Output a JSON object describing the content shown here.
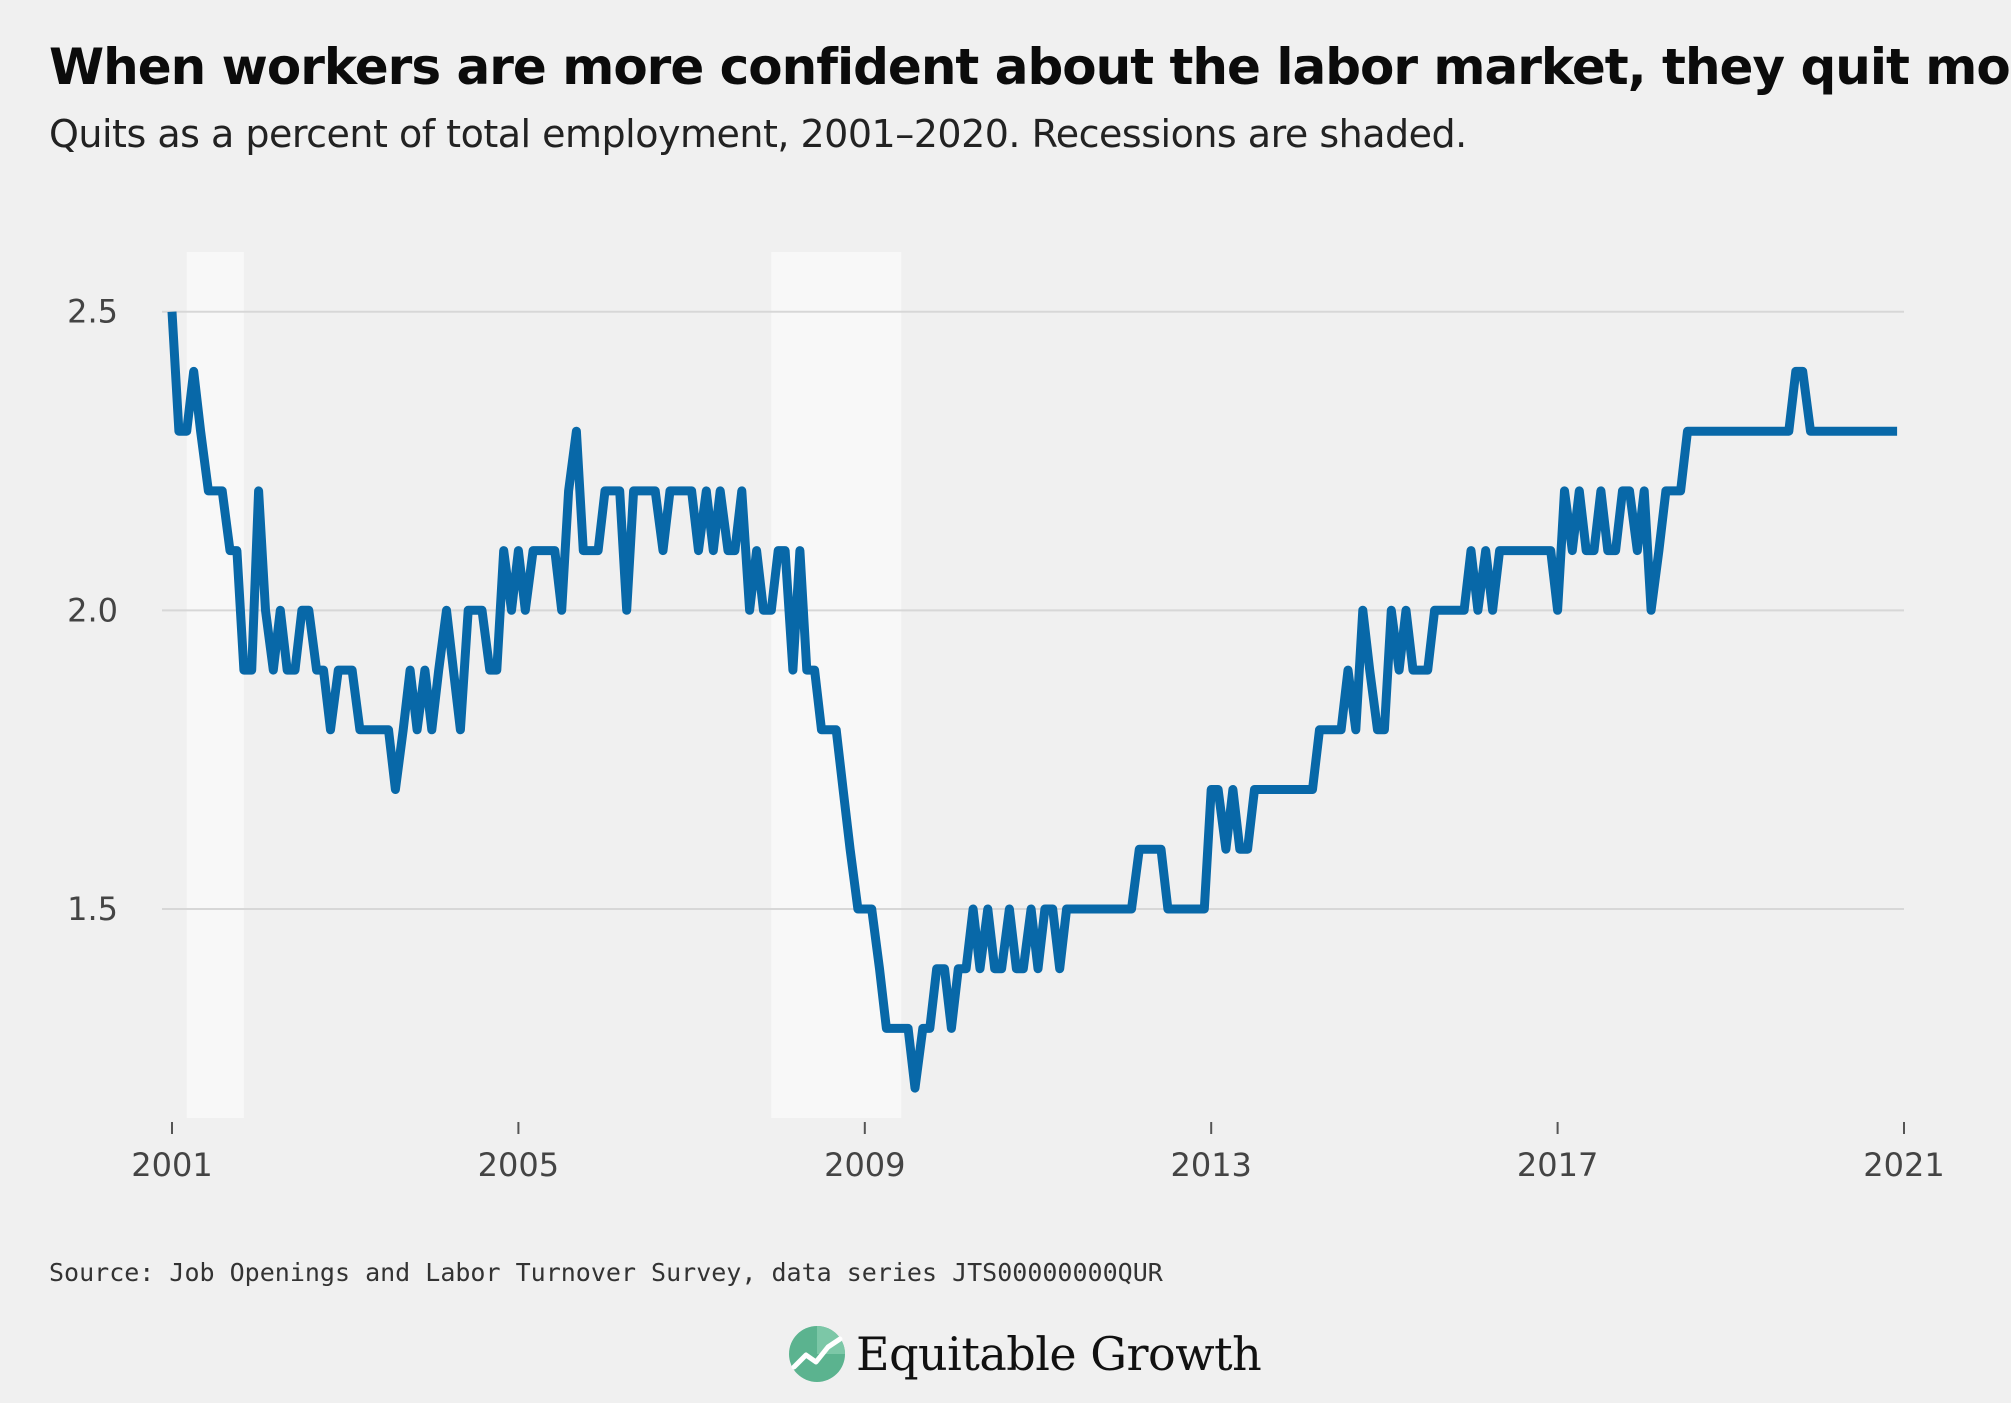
{
  "header": {
    "title": "When workers are more confident about the labor market, they quit more",
    "subtitle": "Quits as a percent of total employment, 2001–2020. Recessions are shaded."
  },
  "footer": {
    "source": "Source: Job Openings and Labor Turnover Survey, data series JTS00000000QUR",
    "logo_text": "Equitable Growth"
  },
  "colors": {
    "background": "#f0f0f0",
    "line": "#0868a8",
    "recession_band": "#f8f8f8",
    "gridline": "#d7d7d7",
    "logo_green": "#5bb38f"
  },
  "chart_data": {
    "type": "line",
    "xlim": [
      2001,
      2021
    ],
    "ylim": [
      1.15,
      2.6
    ],
    "x_ticks": [
      "2001",
      "2005",
      "2009",
      "2013",
      "2017",
      "2021"
    ],
    "y_ticks": [
      "1.5",
      "2.0",
      "2.5"
    ],
    "grid": true,
    "recessions": [
      [
        2001.17,
        2001.83
      ],
      [
        2007.92,
        2009.42
      ]
    ],
    "series": [
      {
        "x": [
          2001.0,
          2001.08,
          2001.17,
          2001.25,
          2001.33,
          2001.42,
          2001.5,
          2001.58,
          2001.67,
          2001.75,
          2001.83,
          2001.92,
          2002.0,
          2002.08,
          2002.17,
          2002.25,
          2002.33,
          2002.42,
          2002.5,
          2002.58,
          2002.67,
          2002.75,
          2002.83,
          2002.92,
          2003.0,
          2003.08,
          2003.17,
          2003.25,
          2003.33,
          2003.42,
          2003.5,
          2003.58,
          2003.67,
          2003.75,
          2003.83,
          2003.92,
          2004.0,
          2004.08,
          2004.17,
          2004.25,
          2004.33,
          2004.42,
          2004.5,
          2004.58,
          2004.67,
          2004.75,
          2004.83,
          2004.92,
          2005.0,
          2005.08,
          2005.17,
          2005.25,
          2005.33,
          2005.42,
          2005.5,
          2005.58,
          2005.67,
          2005.75,
          2005.83,
          2005.92,
          2006.0,
          2006.08,
          2006.17,
          2006.25,
          2006.33,
          2006.42,
          2006.5,
          2006.58,
          2006.67,
          2006.75,
          2006.83,
          2006.92,
          2007.0,
          2007.08,
          2007.17,
          2007.25,
          2007.33,
          2007.42,
          2007.5,
          2007.58,
          2007.67,
          2007.75,
          2007.83,
          2007.92,
          2008.0,
          2008.08,
          2008.17,
          2008.25,
          2008.33,
          2008.42,
          2008.5,
          2008.58,
          2008.67,
          2008.75,
          2008.83,
          2008.92,
          2009.0,
          2009.08,
          2009.17,
          2009.25,
          2009.33,
          2009.42,
          2009.5,
          2009.58,
          2009.67,
          2009.75,
          2009.83,
          2009.92,
          2010.0,
          2010.08,
          2010.17,
          2010.25,
          2010.33,
          2010.42,
          2010.5,
          2010.58,
          2010.67,
          2010.75,
          2010.83,
          2010.92,
          2011.0,
          2011.08,
          2011.17,
          2011.25,
          2011.33,
          2011.42,
          2011.5,
          2011.58,
          2011.67,
          2011.75,
          2011.83,
          2011.92,
          2012.0,
          2012.08,
          2012.17,
          2012.25,
          2012.33,
          2012.42,
          2012.5,
          2012.58,
          2012.67,
          2012.75,
          2012.83,
          2012.92,
          2013.0,
          2013.08,
          2013.17,
          2013.25,
          2013.33,
          2013.42,
          2013.5,
          2013.58,
          2013.67,
          2013.75,
          2013.83,
          2013.92,
          2014.0,
          2014.08,
          2014.17,
          2014.25,
          2014.33,
          2014.42,
          2014.5,
          2014.58,
          2014.67,
          2014.75,
          2014.83,
          2014.92,
          2015.0,
          2015.08,
          2015.17,
          2015.25,
          2015.33,
          2015.42,
          2015.5,
          2015.58,
          2015.67,
          2015.75,
          2015.83,
          2015.92,
          2016.0,
          2016.08,
          2016.17,
          2016.25,
          2016.33,
          2016.42,
          2016.5,
          2016.58,
          2016.67,
          2016.75,
          2016.83,
          2016.92,
          2017.0,
          2017.08,
          2017.17,
          2017.25,
          2017.33,
          2017.42,
          2017.5,
          2017.58,
          2017.67,
          2017.75,
          2017.83,
          2017.92,
          2018.0,
          2018.08,
          2018.17,
          2018.25,
          2018.33,
          2018.42,
          2018.5,
          2018.58,
          2018.67,
          2018.75,
          2018.83,
          2018.92,
          2019.0,
          2019.08,
          2019.17,
          2019.25,
          2019.33,
          2019.42,
          2019.5,
          2019.58,
          2019.67,
          2019.75,
          2019.83,
          2019.92,
          2020.0,
          2020.08,
          2020.17,
          2020.25,
          2020.33,
          2020.42,
          2020.5,
          2020.58,
          2020.67,
          2020.75,
          2020.83,
          2020.92
        ],
        "values": [
          2.5,
          2.3,
          2.3,
          2.4,
          2.3,
          2.2,
          2.2,
          2.2,
          2.1,
          2.1,
          1.9,
          1.9,
          2.2,
          2.0,
          1.9,
          2.0,
          1.9,
          1.9,
          2.0,
          2.0,
          1.9,
          1.9,
          1.8,
          1.9,
          1.9,
          1.9,
          1.8,
          1.8,
          1.8,
          1.8,
          1.8,
          1.7,
          1.8,
          1.9,
          1.8,
          1.9,
          1.8,
          1.9,
          2.0,
          1.9,
          1.8,
          2.0,
          2.0,
          2.0,
          1.9,
          1.9,
          2.1,
          2.0,
          2.1,
          2.0,
          2.1,
          2.1,
          2.1,
          2.1,
          2.0,
          2.2,
          2.3,
          2.1,
          2.1,
          2.1,
          2.2,
          2.2,
          2.2,
          2.0,
          2.2,
          2.2,
          2.2,
          2.2,
          2.1,
          2.2,
          2.2,
          2.2,
          2.2,
          2.1,
          2.2,
          2.1,
          2.2,
          2.1,
          2.1,
          2.2,
          2.0,
          2.1,
          2.0,
          2.0,
          2.1,
          2.1,
          1.9,
          2.1,
          1.9,
          1.9,
          1.8,
          1.8,
          1.8,
          1.7,
          1.6,
          1.5,
          1.5,
          1.5,
          1.4,
          1.3,
          1.3,
          1.3,
          1.3,
          1.2,
          1.3,
          1.3,
          1.4,
          1.4,
          1.3,
          1.4,
          1.4,
          1.5,
          1.4,
          1.5,
          1.4,
          1.4,
          1.5,
          1.4,
          1.4,
          1.5,
          1.4,
          1.5,
          1.5,
          1.4,
          1.5,
          1.5,
          1.5,
          1.5,
          1.5,
          1.5,
          1.5,
          1.5,
          1.5,
          1.5,
          1.6,
          1.6,
          1.6,
          1.6,
          1.5,
          1.5,
          1.5,
          1.5,
          1.5,
          1.5,
          1.7,
          1.7,
          1.6,
          1.7,
          1.6,
          1.6,
          1.7,
          1.7,
          1.7,
          1.7,
          1.7,
          1.7,
          1.7,
          1.7,
          1.7,
          1.8,
          1.8,
          1.8,
          1.8,
          1.9,
          1.8,
          2.0,
          1.9,
          1.8,
          1.8,
          2.0,
          1.9,
          2.0,
          1.9,
          1.9,
          1.9,
          2.0,
          2.0,
          2.0,
          2.0,
          2.0,
          2.1,
          2.0,
          2.1,
          2.0,
          2.1,
          2.1,
          2.1,
          2.1,
          2.1,
          2.1,
          2.1,
          2.1,
          2.0,
          2.2,
          2.1,
          2.2,
          2.1,
          2.1,
          2.2,
          2.1,
          2.1,
          2.2,
          2.2,
          2.1,
          2.2,
          2.0,
          2.1,
          2.2,
          2.2,
          2.2,
          2.3,
          2.3,
          2.3,
          2.3,
          2.3,
          2.3,
          2.3,
          2.3,
          2.3,
          2.3,
          2.3,
          2.3,
          2.3,
          2.3,
          2.3,
          2.4,
          2.4,
          2.3,
          2.3,
          2.3,
          2.3,
          2.3,
          2.3,
          2.3,
          2.3,
          2.3,
          2.3,
          2.3,
          2.3,
          2.3
        ]
      }
    ]
  }
}
